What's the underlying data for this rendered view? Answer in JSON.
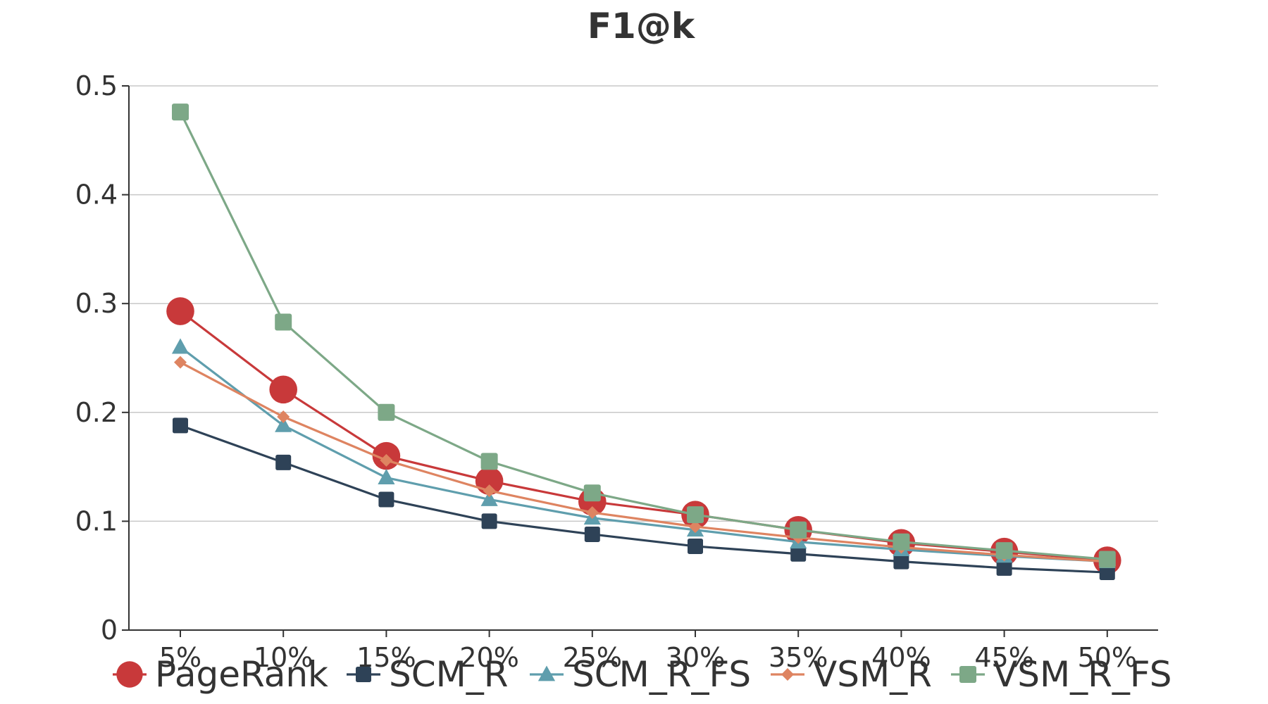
{
  "chart_data": {
    "type": "line",
    "title": "F1@k",
    "xlabel": "",
    "ylabel": "",
    "categories": [
      "5%",
      "10%",
      "15%",
      "20%",
      "25%",
      "30%",
      "35%",
      "40%",
      "45%",
      "50%"
    ],
    "ylim": [
      0,
      0.5
    ],
    "yticks": [
      0,
      0.1,
      0.2,
      0.3,
      0.4,
      0.5
    ],
    "ytick_labels": [
      "0",
      "0.1",
      "0.2",
      "0.3",
      "0.4",
      "0.5"
    ],
    "grid": true,
    "legend_position": "bottom",
    "series": [
      {
        "name": "PageRank",
        "color": "#c8393a",
        "marker": "circle",
        "values": [
          0.293,
          0.221,
          0.16,
          0.137,
          0.118,
          0.106,
          0.092,
          0.08,
          0.072,
          0.064
        ]
      },
      {
        "name": "SCM_R",
        "color": "#2e4257",
        "marker": "square",
        "values": [
          0.188,
          0.154,
          0.12,
          0.1,
          0.088,
          0.077,
          0.07,
          0.063,
          0.057,
          0.053
        ]
      },
      {
        "name": "SCM_R_FS",
        "color": "#5f9ead",
        "marker": "triangle",
        "values": [
          0.26,
          0.188,
          0.14,
          0.12,
          0.103,
          0.092,
          0.081,
          0.074,
          0.068,
          0.063
        ]
      },
      {
        "name": "VSM_R",
        "color": "#de8461",
        "marker": "diamond",
        "values": [
          0.246,
          0.196,
          0.156,
          0.128,
          0.108,
          0.095,
          0.085,
          0.076,
          0.069,
          0.063
        ]
      },
      {
        "name": "VSM_R_FS",
        "color": "#7da887",
        "marker": "square",
        "values": [
          0.476,
          0.283,
          0.2,
          0.155,
          0.126,
          0.106,
          0.092,
          0.081,
          0.073,
          0.065
        ]
      }
    ]
  }
}
